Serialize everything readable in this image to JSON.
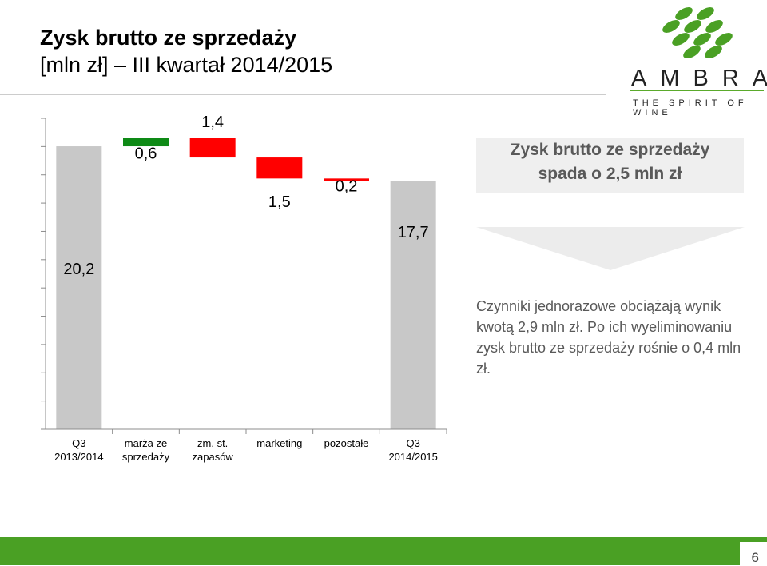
{
  "header": {
    "title_line1": "Zysk brutto ze sprzedaży",
    "title_line2": "[mln zł] – III kwartał 2014/2015"
  },
  "logo": {
    "wordmark": "AMBRA",
    "tagline": "THE SPIRIT OF WINE",
    "brand_color": "#4aa024"
  },
  "callout": {
    "line1": "Zysk brutto ze sprzedaży",
    "line2": "spada o 2,5 mln zł"
  },
  "note": "Czynniki jednorazowe obciążają wynik kwotą 2,9 mln zł. Po ich wyeliminowaniu zysk brutto ze sprzedaży rośnie o 0,4 mln zł.",
  "page_number": "6",
  "colors": {
    "total": "#c8c8c8",
    "increase": "#0e8a16",
    "decrease": "#ff0000"
  },
  "chart_data": {
    "type": "bar",
    "subtype": "waterfall",
    "categories": [
      "Q3\n2013/2014",
      "marża ze\nsprzedaży",
      "zm. st.\nzapasów",
      "marketing",
      "pozostałe",
      "Q3\n2014/2015"
    ],
    "values": [
      20.2,
      0.6,
      -1.4,
      -1.5,
      -0.2,
      17.7
    ],
    "kinds": [
      "total",
      "increase",
      "decrease",
      "decrease",
      "decrease",
      "total"
    ],
    "data_labels": [
      "20,2",
      "0,6",
      "1,4",
      "1,5",
      "0,2",
      "17,7"
    ],
    "ylim": [
      0,
      22.2
    ],
    "grid": false,
    "legend": "none"
  }
}
